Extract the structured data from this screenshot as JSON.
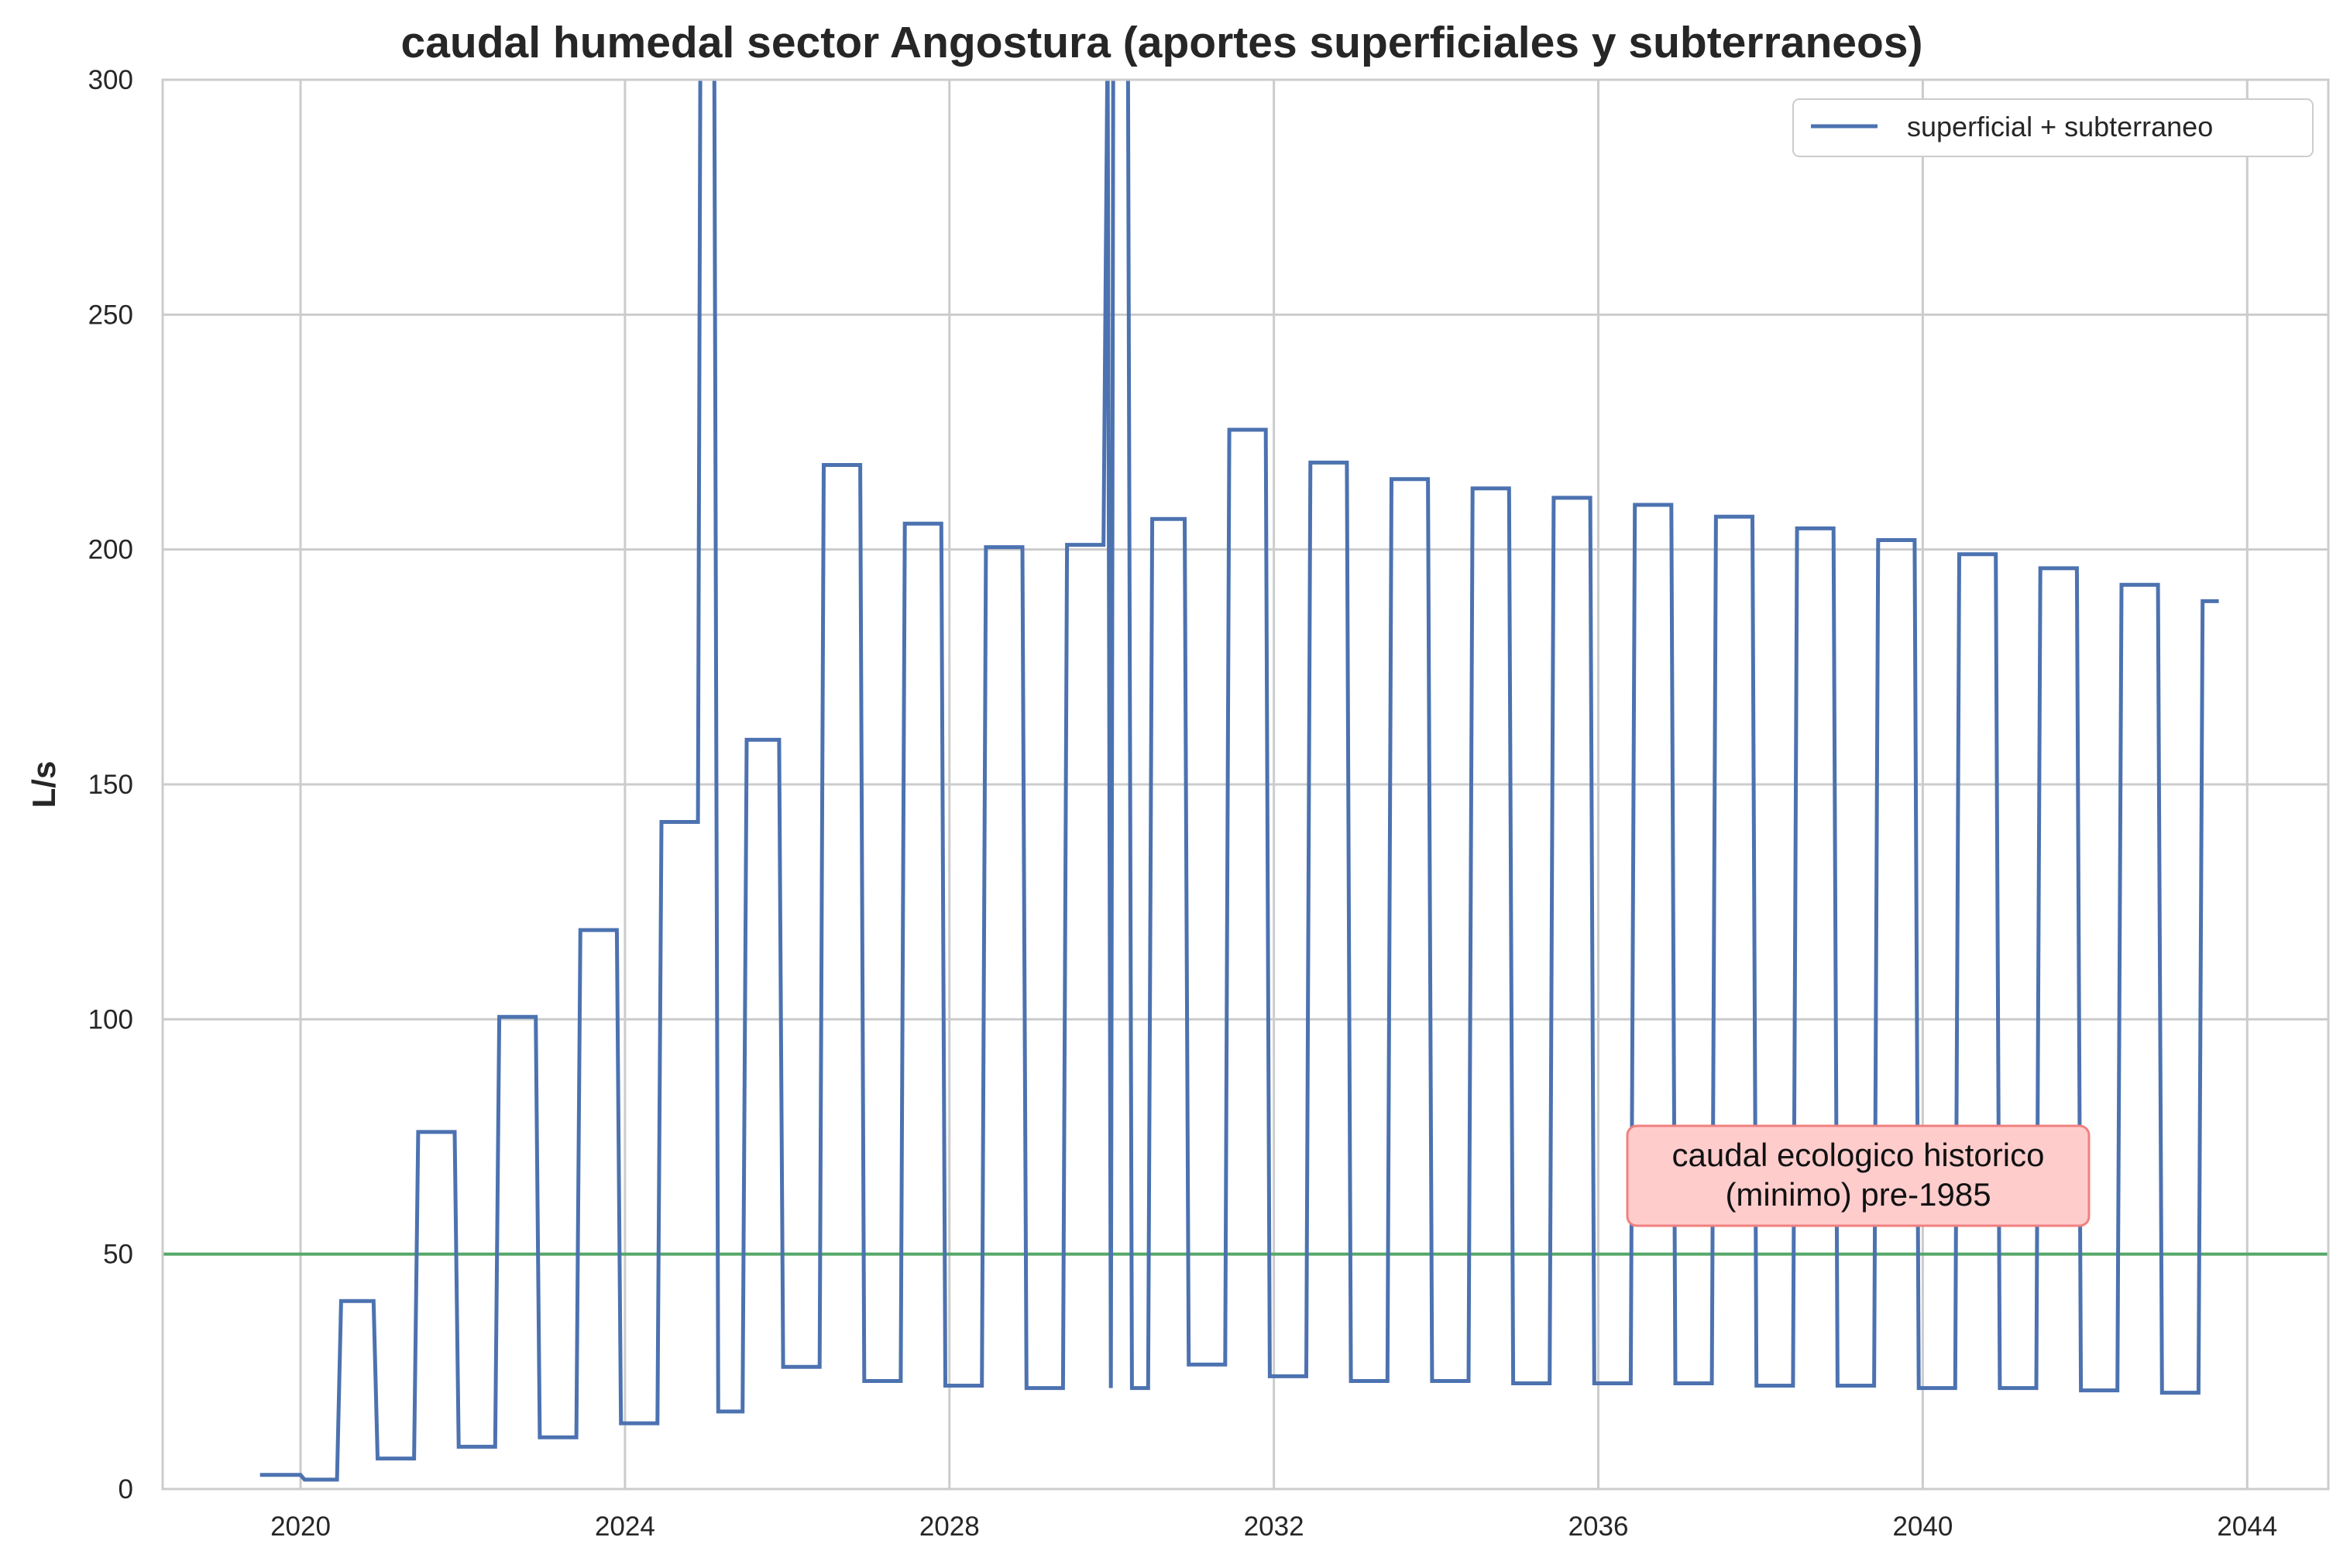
{
  "chart_data": {
    "type": "line",
    "title": "caudal humedal sector Angostura (aportes superficiales y subterraneos)",
    "xlabel": "",
    "ylabel": "L/s",
    "xlim": [
      2018.3,
      2045.0
    ],
    "ylim": [
      0,
      300
    ],
    "x_ticks": [
      2020,
      2024,
      2028,
      2032,
      2036,
      2040,
      2044
    ],
    "x_tick_labels": [
      "2020",
      "2024",
      "2028",
      "2032",
      "2036",
      "2040",
      "2044"
    ],
    "y_ticks": [
      0,
      50,
      100,
      150,
      200,
      250,
      300
    ],
    "y_tick_labels": [
      "0",
      "50",
      "100",
      "150",
      "200",
      "250",
      "300"
    ],
    "grid": true,
    "legend_position": "top-right",
    "series": [
      {
        "name": "superficial + subterraneo",
        "color": "#4c72b0",
        "x": [
          2019.5,
          2020.0,
          2020.05,
          2020.45,
          2020.5,
          2020.9,
          2020.95,
          2021.4,
          2021.45,
          2021.9,
          2021.95,
          2022.4,
          2022.45,
          2022.9,
          2022.95,
          2023.4,
          2023.45,
          2023.9,
          2023.95,
          2024.4,
          2024.45,
          2024.9,
          2024.93,
          2025.1,
          2025.15,
          2025.45,
          2025.5,
          2025.9,
          2025.95,
          2026.4,
          2026.45,
          2026.9,
          2026.95,
          2027.4,
          2027.45,
          2027.9,
          2027.95,
          2028.4,
          2028.45,
          2028.9,
          2028.95,
          2029.4,
          2029.45,
          2029.9,
          2029.95,
          2029.99,
          2030.02,
          2030.2,
          2030.25,
          2030.45,
          2030.5,
          2030.9,
          2030.95,
          2031.4,
          2031.45,
          2031.9,
          2031.95,
          2032.4,
          2032.45,
          2032.9,
          2032.95,
          2033.4,
          2033.45,
          2033.9,
          2033.95,
          2034.4,
          2034.45,
          2034.9,
          2034.95,
          2035.4,
          2035.45,
          2035.9,
          2035.95,
          2036.4,
          2036.45,
          2036.9,
          2036.95,
          2037.4,
          2037.45,
          2037.9,
          2037.95,
          2038.4,
          2038.45,
          2038.9,
          2038.95,
          2039.4,
          2039.45,
          2039.9,
          2039.95,
          2040.4,
          2040.45,
          2040.9,
          2040.95,
          2041.4,
          2041.45,
          2041.9,
          2041.95,
          2042.4,
          2042.45,
          2042.9,
          2042.95,
          2043.4,
          2043.45,
          2043.65
        ],
        "y": [
          3,
          3,
          2,
          2,
          40,
          40,
          6.5,
          6.5,
          76,
          76,
          9,
          9,
          100.5,
          100.5,
          11,
          11,
          119,
          119,
          14,
          14,
          142,
          142,
          310,
          310,
          16.5,
          16.5,
          159.5,
          159.5,
          26,
          26,
          218,
          218,
          23,
          23,
          205.5,
          205.5,
          22,
          22,
          200.5,
          200.5,
          21.5,
          21.5,
          201,
          201,
          310,
          21.5,
          310,
          310,
          21.5,
          21.5,
          206.5,
          206.5,
          26.5,
          26.5,
          225.5,
          225.5,
          24,
          24,
          218.5,
          218.5,
          23,
          23,
          215,
          215,
          23,
          23,
          213,
          213,
          22.5,
          22.5,
          211,
          211,
          22.5,
          22.5,
          209.5,
          209.5,
          22.5,
          22.5,
          207,
          207,
          22,
          22,
          204.5,
          204.5,
          22,
          22,
          202,
          202,
          21.5,
          21.5,
          199,
          199,
          21.5,
          21.5,
          196,
          196,
          21,
          21,
          192.5,
          192.5,
          20.5,
          20.5,
          189,
          189
        ]
      }
    ],
    "reference_line": {
      "y": 50,
      "color": "#55a868"
    },
    "annotation": {
      "lines": [
        "caudal ecologico historico",
        "(minimo) pre-1985"
      ],
      "x": 2039.0,
      "y": 67,
      "box_fill": "#ffcccc",
      "box_edge": "#f08080"
    }
  }
}
